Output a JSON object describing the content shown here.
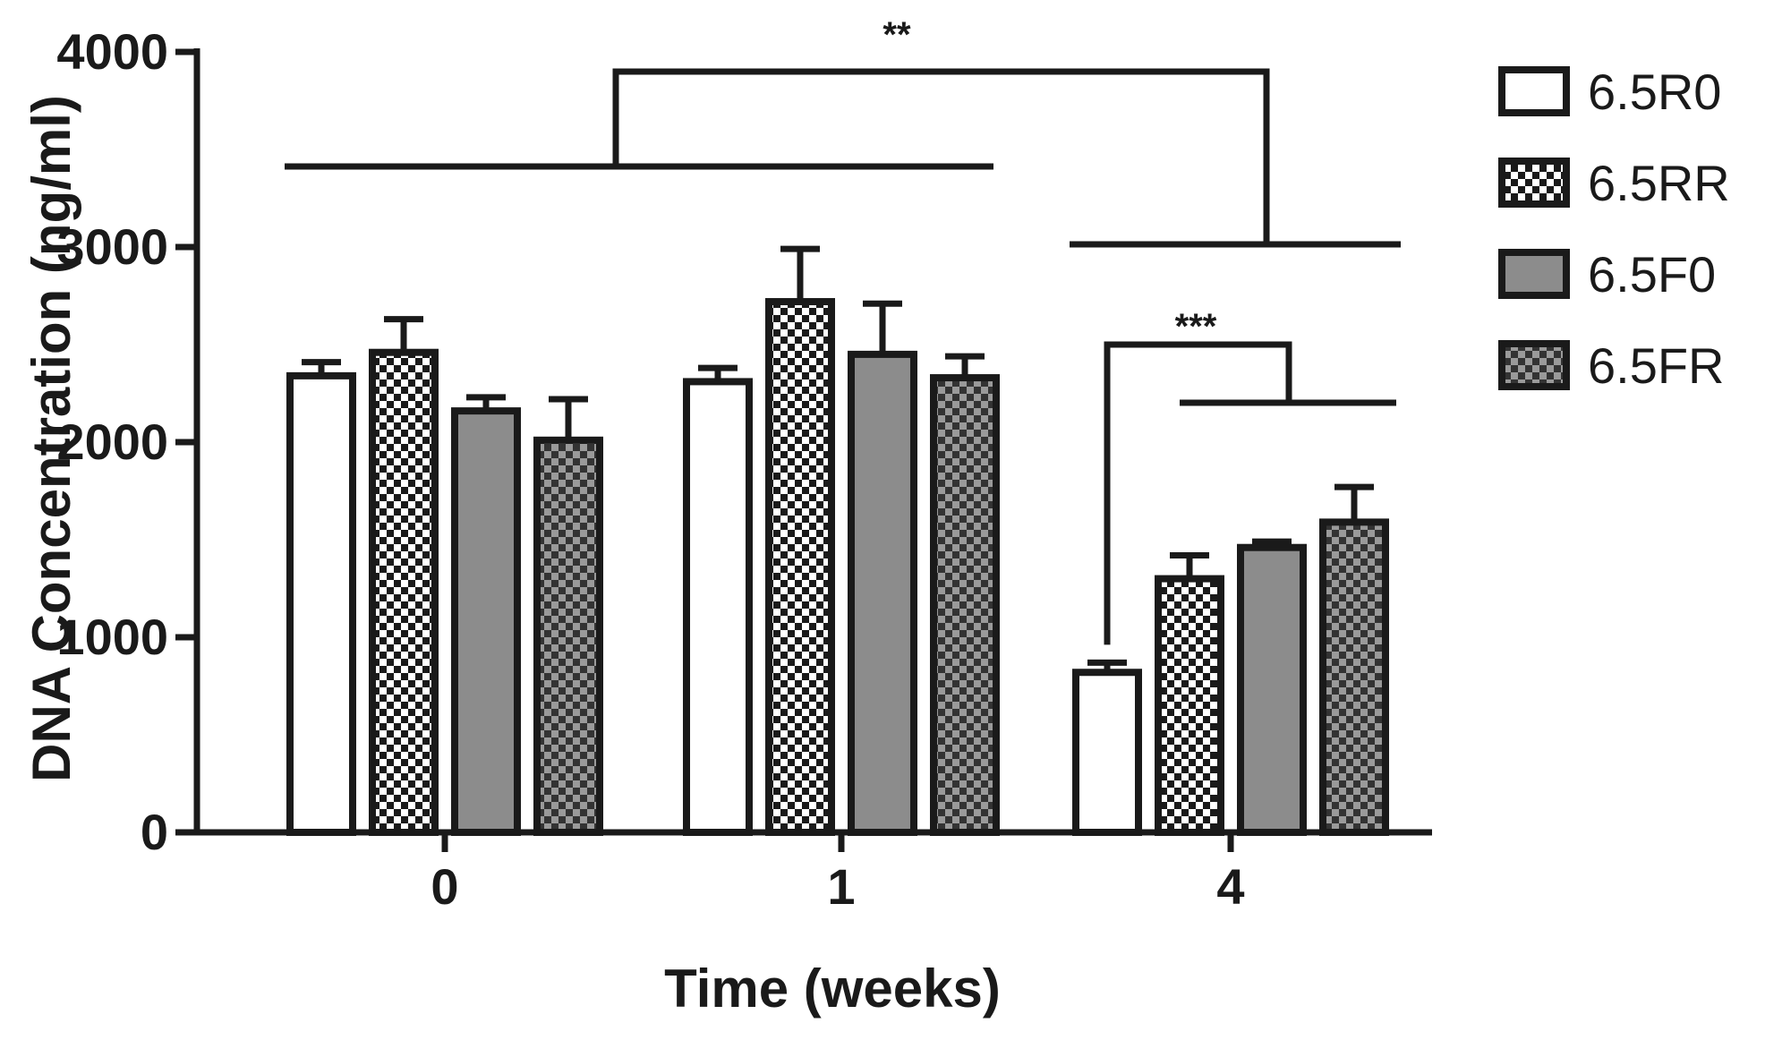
{
  "chart_data": {
    "type": "bar",
    "title": "",
    "xlabel": "Time (weeks)",
    "ylabel": "DNA Concentration (ng/ml)",
    "categories": [
      "0",
      "1",
      "4"
    ],
    "ylim": [
      0,
      4000
    ],
    "yticks": [
      0,
      1000,
      2000,
      3000,
      4000
    ],
    "grid": false,
    "legend_position": "right",
    "series": [
      {
        "name": "6.5R0",
        "pattern": "white",
        "values": [
          2340,
          2310,
          820
        ],
        "errors": [
          70,
          70,
          50
        ]
      },
      {
        "name": "6.5RR",
        "pattern": "checker",
        "values": [
          2460,
          2720,
          1300
        ],
        "errors": [
          170,
          270,
          120
        ]
      },
      {
        "name": "6.5F0",
        "pattern": "gray",
        "values": [
          2160,
          2450,
          1460
        ],
        "errors": [
          70,
          260,
          30
        ]
      },
      {
        "name": "6.5FR",
        "pattern": "dark-checker",
        "values": [
          2010,
          2330,
          1590
        ],
        "errors": [
          210,
          110,
          180
        ]
      }
    ],
    "annotations": [
      {
        "text": "**",
        "comparison": "weeks 0-1 vs week 4"
      },
      {
        "text": "***",
        "comparison": "6.5R0 vs other groups at week 4"
      }
    ]
  },
  "colors": {
    "axis": "#1a1a1a",
    "bar_outline": "#1a1a1a",
    "white_fill": "#ffffff",
    "gray_fill": "#8c8c8c"
  }
}
